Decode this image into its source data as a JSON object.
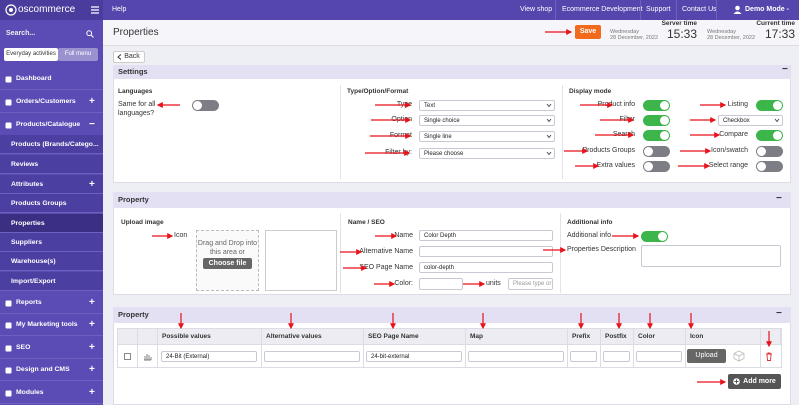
{
  "topbar": {
    "logo": "oscommerce",
    "help": "Help",
    "links": [
      "View shop",
      "Ecommerce Development",
      "Support",
      "Contact Us"
    ],
    "user": "Demo Mode -"
  },
  "sidebar": {
    "search": "Search...",
    "tabs": [
      "Everyday activities",
      "Full menu"
    ],
    "menu": [
      {
        "label": "Dashboard"
      },
      {
        "label": "Orders/Customers",
        "toggle": "+"
      },
      {
        "label": "Products/Catalogue",
        "toggle": "−"
      },
      {
        "label": "Products (Brands/Catego...",
        "sub": true
      },
      {
        "label": "Reviews",
        "sub": true
      },
      {
        "label": "Attributes",
        "toggle": "+",
        "sub": true
      },
      {
        "label": "Products Groups",
        "sub": true
      },
      {
        "label": "Properties",
        "sub": true,
        "active": true
      },
      {
        "label": "Suppliers",
        "sub": true
      },
      {
        "label": "Warehouse(s)",
        "sub": true
      },
      {
        "label": "Import/Export",
        "sub": true
      },
      {
        "label": "Reports",
        "toggle": "+"
      },
      {
        "label": "My Marketing tools",
        "toggle": "+"
      },
      {
        "label": "SEO",
        "toggle": "+"
      },
      {
        "label": "Design and CMS",
        "toggle": "+"
      },
      {
        "label": "Modules",
        "toggle": "+"
      }
    ]
  },
  "header": {
    "title": "Properties",
    "save": "Save",
    "clocks": [
      {
        "label": "Server time",
        "day": "Wednesday",
        "date": "28 December, 2022",
        "time": "15:33"
      },
      {
        "label": "Current time",
        "day": "Wednesday",
        "date": "28 December, 2022",
        "time": "17:33"
      }
    ]
  },
  "back": "Back",
  "settings": {
    "title": "Settings",
    "collapse": "−",
    "languages": {
      "heading": "Languages",
      "label_lines": [
        "Same for all",
        "languages?"
      ],
      "on": false
    },
    "type_option_format": {
      "heading": "Type/Option/Format",
      "rows": [
        {
          "label": "Type",
          "value": "Text"
        },
        {
          "label": "Option",
          "value": "Single choice"
        },
        {
          "label": "Format",
          "value": "Single line"
        },
        {
          "label": "Filter by:",
          "value": "Please choose"
        }
      ]
    },
    "display_mode": {
      "heading": "Display mode",
      "left": [
        {
          "label": "Product info",
          "on": true
        },
        {
          "label": "Filter",
          "on": true
        },
        {
          "label": "Search",
          "on": true
        },
        {
          "label": "Products Groups",
          "on": false
        },
        {
          "label": "Extra values",
          "on": false
        }
      ],
      "right": [
        {
          "label": "Listing",
          "on": true
        },
        {
          "select": "Checkbox"
        },
        {
          "label": "Compare",
          "on": true
        },
        {
          "label": "Icon/swatch",
          "on": false
        },
        {
          "label": "Select range",
          "on": false
        }
      ]
    }
  },
  "property": {
    "title": "Property",
    "collapse": "−",
    "upload": {
      "heading": "Upload image",
      "icon_label": "Icon",
      "drop_lines": [
        "Drag and Drop into",
        "this area or"
      ],
      "button": "Choose file"
    },
    "name_seo": {
      "heading": "Name / SEO",
      "name_label": "Name",
      "name": "Color Depth",
      "alt_label": "Alternative Name",
      "seo_label": "SEO Page Name",
      "seo": "color-depth",
      "color_label": "Color:",
      "units_label": "units",
      "units_placeholder": "Please type or"
    },
    "additional": {
      "heading": "Additional info",
      "toggle_label": "Additional info",
      "on": true,
      "description_label": "Properties Description"
    }
  },
  "values_table": {
    "title": "Property",
    "collapse": "−",
    "columns": [
      "Possible values",
      "Alternative values",
      "SEO Page Name",
      "Map",
      "Prefix",
      "Postfix",
      "Color",
      "Icon"
    ],
    "rows": [
      {
        "possible": "24-Bit (External)",
        "seo": "24-bit-external",
        "upload": "Upload"
      }
    ],
    "add_more": "Add more"
  }
}
